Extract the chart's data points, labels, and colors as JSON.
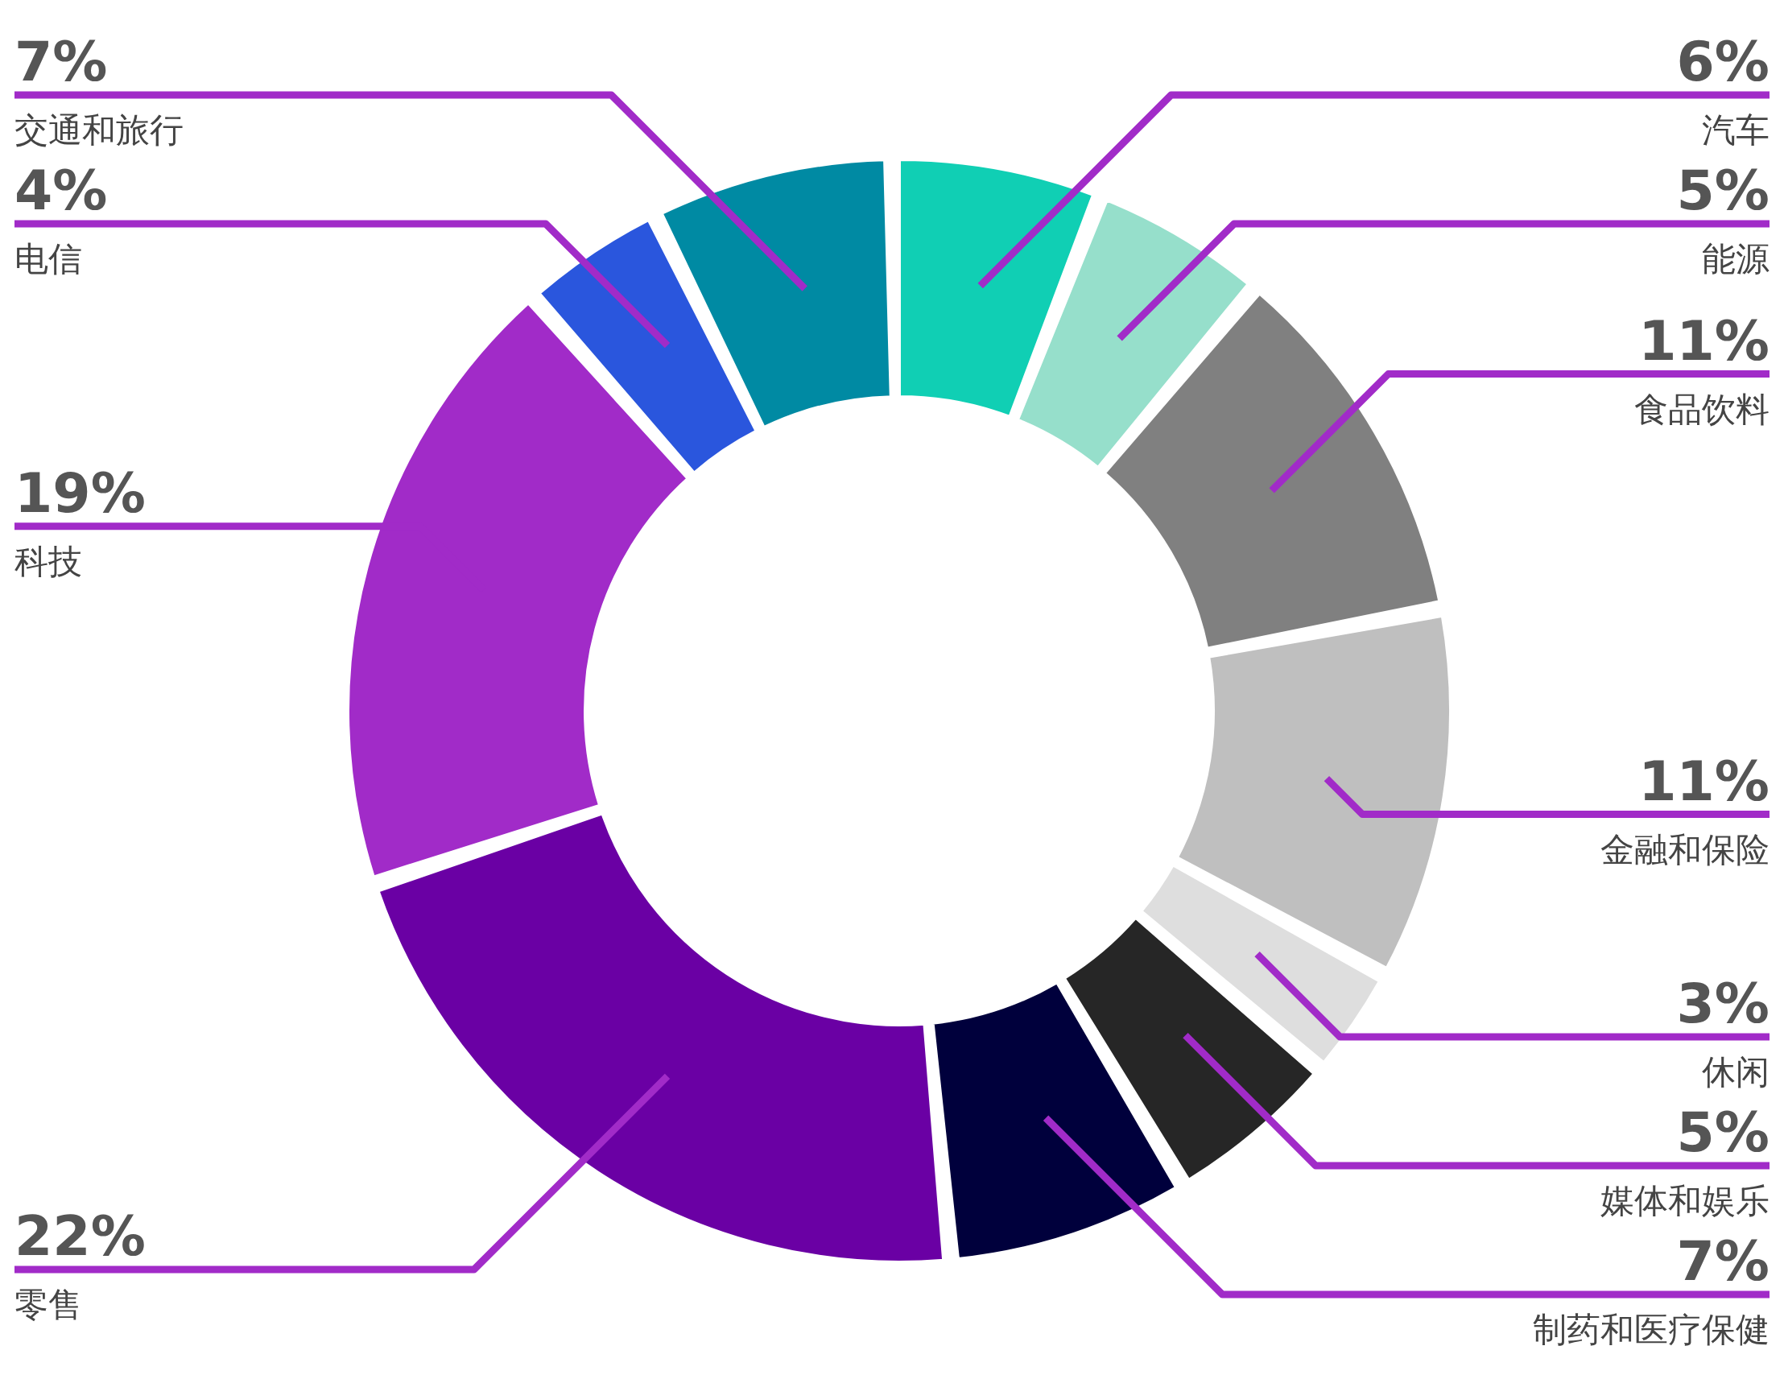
{
  "chart_data": {
    "type": "donut",
    "categories": [
      "汽车",
      "能源",
      "食品饮料",
      "金融和保险",
      "休闲",
      "媒体和娱乐",
      "制药和医疗保健",
      "零售",
      "科技",
      "电信",
      "交通和旅行"
    ],
    "values": [
      6,
      5,
      11,
      11,
      3,
      5,
      7,
      22,
      19,
      4,
      7
    ],
    "value_labels": [
      "6%",
      "5%",
      "11%",
      "11%",
      "3%",
      "5%",
      "7%",
      "22%",
      "19%",
      "4%",
      "7%"
    ],
    "colors": [
      "#10cfb4",
      "#96dfcb",
      "#808080",
      "#bfbfbf",
      "#dedede",
      "#262626",
      "#00003c",
      "#6a00a4",
      "#a12bc8",
      "#2a56dd",
      "#008aa3"
    ],
    "legend": false
  }
}
